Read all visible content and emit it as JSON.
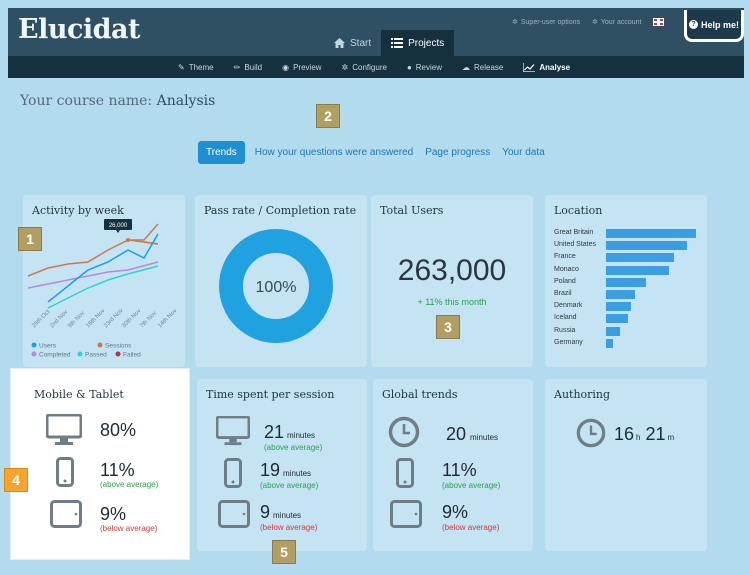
{
  "header": {
    "logo": "Elucidat",
    "tabs": [
      {
        "label": "Start",
        "icon": "home-icon"
      },
      {
        "label": "Projects",
        "icon": "list-icon",
        "active": true
      }
    ],
    "super_user": "Super-user options",
    "account": "Your account",
    "help": "Help me!"
  },
  "subnav": [
    {
      "label": "Theme",
      "icon": "brush-icon"
    },
    {
      "label": "Build",
      "icon": "pencil-icon"
    },
    {
      "label": "Preview",
      "icon": "eye-icon"
    },
    {
      "label": "Configure",
      "icon": "gears-icon"
    },
    {
      "label": "Review",
      "icon": "comments-icon"
    },
    {
      "label": "Release",
      "icon": "cloud-upload-icon"
    },
    {
      "label": "Analyse",
      "icon": "chart-icon",
      "active": true
    }
  ],
  "page": {
    "title_prefix": "Your course name:",
    "title_name": "Analysis"
  },
  "tabs": [
    "Trends",
    "How your questions were answered",
    "Page progress",
    "Your data"
  ],
  "badges": [
    "1",
    "2",
    "3",
    "4",
    "5"
  ],
  "activity": {
    "title": "Activity by week",
    "tooltip": "26,000",
    "x_labels": [
      "26th Oct",
      "2nd Nov",
      "9th Nov",
      "16th Nov",
      "23rd Nov",
      "30th Nov",
      "7th Nov",
      "14th Nov"
    ],
    "legend": [
      {
        "label": "Users",
        "color": "#1aa0e6"
      },
      {
        "label": "Sessions",
        "color": "#d0784c"
      },
      {
        "label": "Completed",
        "color": "#b68ad8"
      },
      {
        "label": "Passed",
        "color": "#2fd2d0"
      },
      {
        "label": "Failed",
        "color": "#b43a3a"
      }
    ]
  },
  "pass_rate": {
    "title": "Pass rate / Completion rate",
    "value": "100%",
    "color": "#20a1e0"
  },
  "total_users": {
    "title": "Total Users",
    "value": "263,000",
    "delta": "+ 11% this month"
  },
  "location": {
    "title": "Location",
    "items": [
      {
        "label": "Great Britain",
        "value": 100
      },
      {
        "label": "United States",
        "value": 90
      },
      {
        "label": "France",
        "value": 76
      },
      {
        "label": "Monaco",
        "value": 70
      },
      {
        "label": "Poland",
        "value": 44
      },
      {
        "label": "Brazil",
        "value": 32
      },
      {
        "label": "Denmark",
        "value": 28
      },
      {
        "label": "Iceland",
        "value": 24
      },
      {
        "label": "Russia",
        "value": 16
      },
      {
        "label": "Germany",
        "value": 8
      }
    ]
  },
  "mobile": {
    "title": "Mobile & Tablet",
    "desktop": "80%",
    "phone": "11%",
    "phone_note": "(above average)",
    "tablet": "9%",
    "tablet_note": "(below average)"
  },
  "time_spent": {
    "title": "Time spent per session",
    "desktop": "21",
    "desktop_unit": "minutes",
    "desktop_note": "(above average)",
    "phone": "19",
    "phone_unit": "minutes",
    "phone_note": "(above average)",
    "tablet": "9",
    "tablet_unit": "minutes",
    "tablet_note": "(below average)"
  },
  "global": {
    "title": "Global trends",
    "time": "20",
    "time_unit": "minutes",
    "phone": "11%",
    "phone_note": "(above average)",
    "tablet": "9%",
    "tablet_note": "(below average)"
  },
  "authoring": {
    "title": "Authoring",
    "hours": "16",
    "hours_unit": "h",
    "mins": "21",
    "mins_unit": "m"
  }
}
